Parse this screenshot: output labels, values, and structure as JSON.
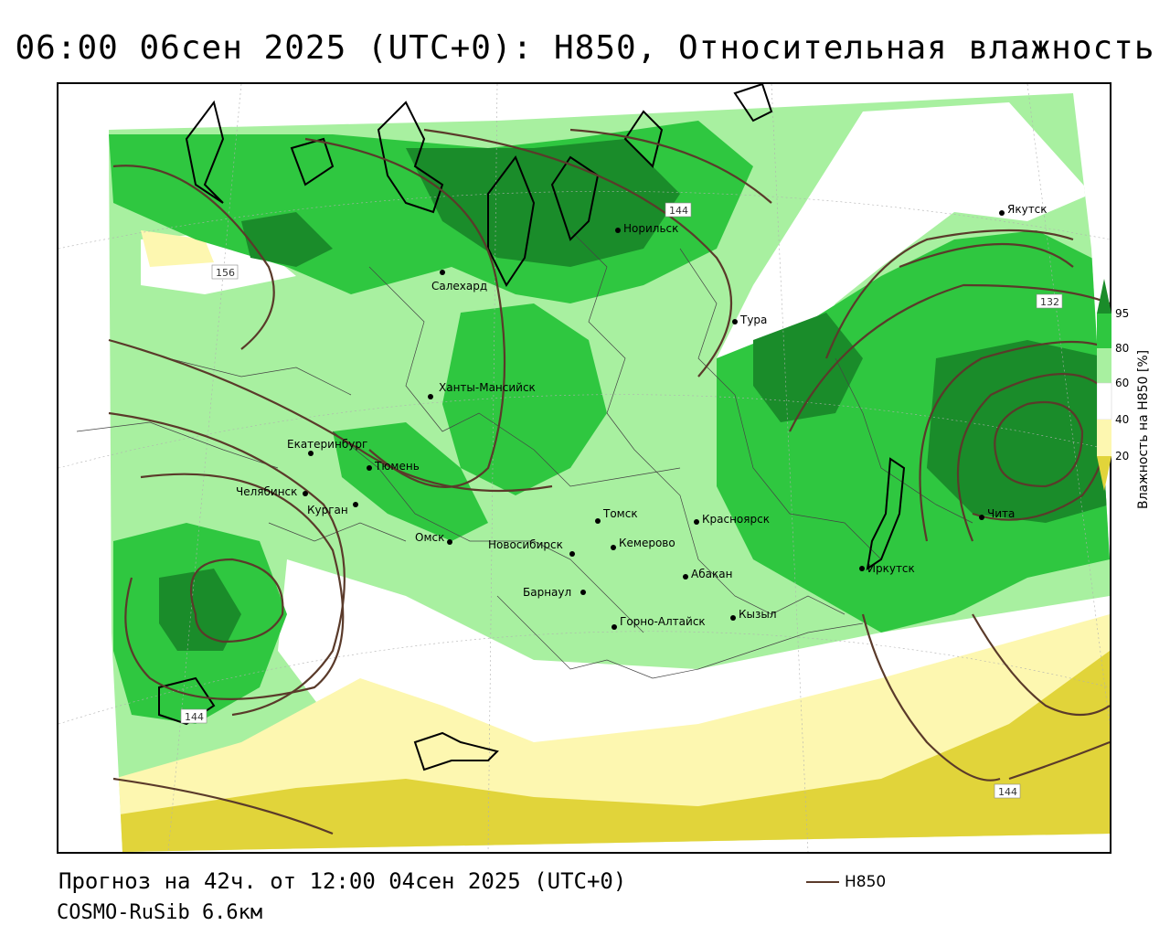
{
  "title": "06:00 06сен 2025 (UTC+0): H850, Относительная влажность",
  "forecast": "Прогноз на 42ч. от 12:00 04сен 2025 (UTC+0)",
  "model": "COSMO-RuSib 6.6км",
  "line_legend": {
    "label": "H850",
    "color": "#5a3a2a"
  },
  "color_scale": {
    "title": "Влажность на H850 [%]",
    "ticks": [
      "95",
      "80",
      "60",
      "40",
      "20"
    ],
    "colors": {
      "very_high": "#1a8c2a",
      "high": "#2fc740",
      "mid": "#a8f0a0",
      "low": "#ffffff",
      "dry": "#fdf7b0",
      "very_dry": "#e1d43a"
    }
  },
  "isolines": [
    {
      "label": "156"
    },
    {
      "label": "144"
    },
    {
      "label": "132"
    },
    {
      "label": "144"
    },
    {
      "label": "144"
    }
  ],
  "cities": [
    {
      "name": "Якутск"
    },
    {
      "name": "Норильск"
    },
    {
      "name": "Салехард"
    },
    {
      "name": "Тура"
    },
    {
      "name": "Ханты-Мансийск"
    },
    {
      "name": "Екатеринбург"
    },
    {
      "name": "Тюмень"
    },
    {
      "name": "Челябинск"
    },
    {
      "name": "Курган"
    },
    {
      "name": "Омск"
    },
    {
      "name": "Новосибирск"
    },
    {
      "name": "Томск"
    },
    {
      "name": "Кемерово"
    },
    {
      "name": "Красноярск"
    },
    {
      "name": "Барнаул"
    },
    {
      "name": "Абакан"
    },
    {
      "name": "Горно-Алтайск"
    },
    {
      "name": "Кызыл"
    },
    {
      "name": "Иркутск"
    },
    {
      "name": "Чита"
    }
  ]
}
